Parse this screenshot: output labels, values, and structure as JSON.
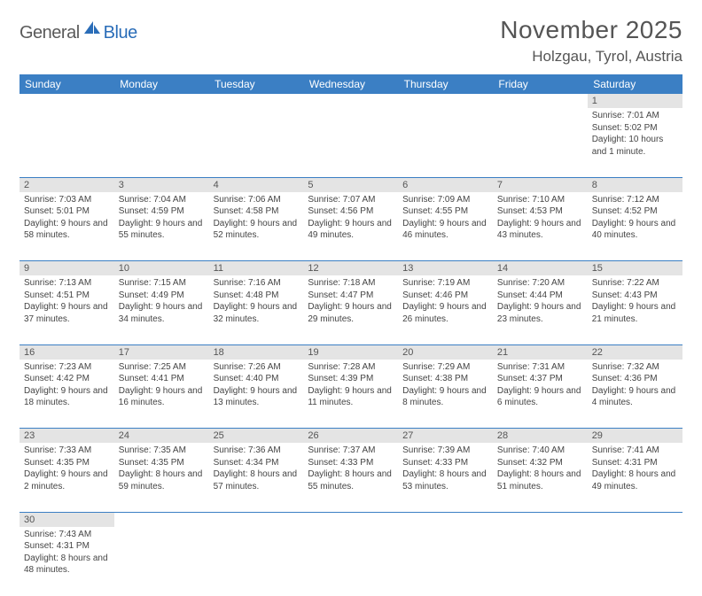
{
  "logo": {
    "text1": "General",
    "text2": "Blue"
  },
  "title": "November 2025",
  "location": "Holzgau, Tyrol, Austria",
  "colors": {
    "header_bg": "#3b7fc4",
    "header_text": "#ffffff",
    "daynum_bg": "#e4e4e4",
    "row_border": "#3b7fc4",
    "text": "#444444",
    "logo_gray": "#5a5a5a",
    "logo_blue": "#2a6db8"
  },
  "weekdays": [
    "Sunday",
    "Monday",
    "Tuesday",
    "Wednesday",
    "Thursday",
    "Friday",
    "Saturday"
  ],
  "weeks": [
    [
      null,
      null,
      null,
      null,
      null,
      null,
      {
        "n": "1",
        "sr": "7:01 AM",
        "ss": "5:02 PM",
        "dl": "10 hours and 1 minute."
      }
    ],
    [
      {
        "n": "2",
        "sr": "7:03 AM",
        "ss": "5:01 PM",
        "dl": "9 hours and 58 minutes."
      },
      {
        "n": "3",
        "sr": "7:04 AM",
        "ss": "4:59 PM",
        "dl": "9 hours and 55 minutes."
      },
      {
        "n": "4",
        "sr": "7:06 AM",
        "ss": "4:58 PM",
        "dl": "9 hours and 52 minutes."
      },
      {
        "n": "5",
        "sr": "7:07 AM",
        "ss": "4:56 PM",
        "dl": "9 hours and 49 minutes."
      },
      {
        "n": "6",
        "sr": "7:09 AM",
        "ss": "4:55 PM",
        "dl": "9 hours and 46 minutes."
      },
      {
        "n": "7",
        "sr": "7:10 AM",
        "ss": "4:53 PM",
        "dl": "9 hours and 43 minutes."
      },
      {
        "n": "8",
        "sr": "7:12 AM",
        "ss": "4:52 PM",
        "dl": "9 hours and 40 minutes."
      }
    ],
    [
      {
        "n": "9",
        "sr": "7:13 AM",
        "ss": "4:51 PM",
        "dl": "9 hours and 37 minutes."
      },
      {
        "n": "10",
        "sr": "7:15 AM",
        "ss": "4:49 PM",
        "dl": "9 hours and 34 minutes."
      },
      {
        "n": "11",
        "sr": "7:16 AM",
        "ss": "4:48 PM",
        "dl": "9 hours and 32 minutes."
      },
      {
        "n": "12",
        "sr": "7:18 AM",
        "ss": "4:47 PM",
        "dl": "9 hours and 29 minutes."
      },
      {
        "n": "13",
        "sr": "7:19 AM",
        "ss": "4:46 PM",
        "dl": "9 hours and 26 minutes."
      },
      {
        "n": "14",
        "sr": "7:20 AM",
        "ss": "4:44 PM",
        "dl": "9 hours and 23 minutes."
      },
      {
        "n": "15",
        "sr": "7:22 AM",
        "ss": "4:43 PM",
        "dl": "9 hours and 21 minutes."
      }
    ],
    [
      {
        "n": "16",
        "sr": "7:23 AM",
        "ss": "4:42 PM",
        "dl": "9 hours and 18 minutes."
      },
      {
        "n": "17",
        "sr": "7:25 AM",
        "ss": "4:41 PM",
        "dl": "9 hours and 16 minutes."
      },
      {
        "n": "18",
        "sr": "7:26 AM",
        "ss": "4:40 PM",
        "dl": "9 hours and 13 minutes."
      },
      {
        "n": "19",
        "sr": "7:28 AM",
        "ss": "4:39 PM",
        "dl": "9 hours and 11 minutes."
      },
      {
        "n": "20",
        "sr": "7:29 AM",
        "ss": "4:38 PM",
        "dl": "9 hours and 8 minutes."
      },
      {
        "n": "21",
        "sr": "7:31 AM",
        "ss": "4:37 PM",
        "dl": "9 hours and 6 minutes."
      },
      {
        "n": "22",
        "sr": "7:32 AM",
        "ss": "4:36 PM",
        "dl": "9 hours and 4 minutes."
      }
    ],
    [
      {
        "n": "23",
        "sr": "7:33 AM",
        "ss": "4:35 PM",
        "dl": "9 hours and 2 minutes."
      },
      {
        "n": "24",
        "sr": "7:35 AM",
        "ss": "4:35 PM",
        "dl": "8 hours and 59 minutes."
      },
      {
        "n": "25",
        "sr": "7:36 AM",
        "ss": "4:34 PM",
        "dl": "8 hours and 57 minutes."
      },
      {
        "n": "26",
        "sr": "7:37 AM",
        "ss": "4:33 PM",
        "dl": "8 hours and 55 minutes."
      },
      {
        "n": "27",
        "sr": "7:39 AM",
        "ss": "4:33 PM",
        "dl": "8 hours and 53 minutes."
      },
      {
        "n": "28",
        "sr": "7:40 AM",
        "ss": "4:32 PM",
        "dl": "8 hours and 51 minutes."
      },
      {
        "n": "29",
        "sr": "7:41 AM",
        "ss": "4:31 PM",
        "dl": "8 hours and 49 minutes."
      }
    ],
    [
      {
        "n": "30",
        "sr": "7:43 AM",
        "ss": "4:31 PM",
        "dl": "8 hours and 48 minutes."
      },
      null,
      null,
      null,
      null,
      null,
      null
    ]
  ],
  "labels": {
    "sunrise": "Sunrise:",
    "sunset": "Sunset:",
    "daylight": "Daylight:"
  }
}
